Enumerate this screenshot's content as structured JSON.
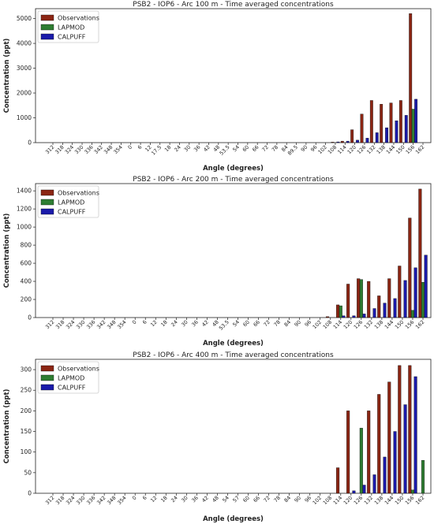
{
  "colors": {
    "observations": "#8b2513",
    "lapmod": "#2e7d32",
    "calpuff": "#1a1aaa"
  },
  "chart_data": [
    {
      "type": "bar",
      "title": "PSB2 - IOP6 - Arc 100 m - Time averaged concentrations",
      "xlabel": "Angle (degrees)",
      "ylabel": "Concentration (ppt)",
      "ylim": [
        0,
        5400
      ],
      "yticks": [
        0,
        1000,
        2000,
        3000,
        4000,
        5000
      ],
      "legend": "top-left",
      "categories": [
        "312",
        "318",
        "324",
        "330",
        "336",
        "342",
        "348",
        "354",
        "0",
        "6",
        "12",
        "17.5",
        "18",
        "24",
        "30",
        "36",
        "42",
        "48",
        "53.5",
        "54",
        "60",
        "66",
        "72",
        "78",
        "84",
        "89.5",
        "90",
        "96",
        "102",
        "108",
        "114",
        "120",
        "126",
        "132",
        "138",
        "144",
        "150",
        "156",
        "162"
      ],
      "series": [
        {
          "name": "Observations",
          "values": [
            0,
            0,
            0,
            0,
            0,
            0,
            0,
            0,
            0,
            0,
            0,
            0,
            0,
            0,
            0,
            0,
            0,
            0,
            0,
            0,
            0,
            0,
            0,
            0,
            0,
            0,
            0,
            0,
            0,
            20,
            60,
            520,
            1150,
            1700,
            1550,
            1600,
            1700,
            5200,
            0
          ]
        },
        {
          "name": "LAPMOD",
          "values": [
            0,
            0,
            0,
            0,
            0,
            0,
            0,
            0,
            0,
            0,
            0,
            0,
            0,
            0,
            0,
            0,
            0,
            0,
            0,
            0,
            0,
            0,
            0,
            0,
            0,
            0,
            0,
            0,
            0,
            0,
            0,
            0,
            0,
            0,
            0,
            0,
            0,
            1350,
            0
          ]
        },
        {
          "name": "CALPUFF",
          "values": [
            0,
            0,
            0,
            0,
            0,
            0,
            0,
            0,
            0,
            0,
            0,
            0,
            0,
            0,
            0,
            0,
            0,
            0,
            0,
            0,
            0,
            0,
            0,
            0,
            0,
            0,
            0,
            0,
            0,
            30,
            60,
            100,
            180,
            400,
            600,
            880,
            1100,
            1750,
            0
          ]
        }
      ]
    },
    {
      "type": "bar",
      "title": "PSB2 - IOP6 - Arc 200 m - Time averaged concentrations",
      "xlabel": "Angle (degrees)",
      "ylabel": "Concentration (ppt)",
      "ylim": [
        0,
        1480
      ],
      "yticks": [
        0,
        200,
        400,
        600,
        800,
        1000,
        1200,
        1400
      ],
      "legend": "top-left",
      "categories": [
        "312",
        "318",
        "324",
        "330",
        "336",
        "342",
        "348",
        "354",
        "0",
        "6",
        "12",
        "18",
        "24",
        "30",
        "36",
        "42",
        "48",
        "53.5",
        "54",
        "60",
        "66",
        "72",
        "78",
        "84",
        "90",
        "96",
        "102",
        "108",
        "114",
        "120",
        "126",
        "132",
        "138",
        "144",
        "150",
        "156",
        "162"
      ],
      "series": [
        {
          "name": "Observations",
          "values": [
            0,
            0,
            0,
            0,
            0,
            0,
            0,
            0,
            0,
            0,
            0,
            0,
            0,
            0,
            0,
            0,
            0,
            0,
            0,
            0,
            0,
            0,
            0,
            0,
            0,
            0,
            0,
            10,
            140,
            370,
            430,
            400,
            240,
            430,
            570,
            1100,
            1420
          ]
        },
        {
          "name": "LAPMOD",
          "values": [
            0,
            0,
            0,
            0,
            0,
            0,
            0,
            0,
            0,
            0,
            0,
            0,
            0,
            0,
            0,
            0,
            0,
            0,
            0,
            0,
            0,
            0,
            0,
            0,
            0,
            0,
            0,
            0,
            130,
            0,
            420,
            0,
            0,
            0,
            0,
            80,
            390
          ]
        },
        {
          "name": "CALPUFF",
          "values": [
            0,
            0,
            0,
            0,
            0,
            0,
            0,
            0,
            0,
            0,
            0,
            0,
            0,
            0,
            0,
            0,
            0,
            0,
            0,
            0,
            0,
            0,
            0,
            0,
            0,
            0,
            0,
            0,
            20,
            20,
            40,
            100,
            160,
            210,
            410,
            550,
            690
          ]
        }
      ]
    },
    {
      "type": "bar",
      "title": "PSB2 - IOP6 - Arc 400 m - Time averaged concentrations",
      "xlabel": "Angle (degrees)",
      "ylabel": "Concentration (ppt)",
      "ylim": [
        0,
        325
      ],
      "yticks": [
        0,
        50,
        100,
        150,
        200,
        250,
        300
      ],
      "legend": "top-left",
      "categories": [
        "312",
        "318",
        "324",
        "330",
        "336",
        "342",
        "348",
        "354",
        "0",
        "6",
        "12",
        "18",
        "24",
        "30",
        "36",
        "42",
        "48",
        "54",
        "57",
        "60",
        "66",
        "72",
        "78",
        "84",
        "90",
        "96",
        "102",
        "108",
        "114",
        "120",
        "126",
        "132",
        "138",
        "144",
        "150",
        "156",
        "162"
      ],
      "series": [
        {
          "name": "Observations",
          "values": [
            0,
            0,
            0,
            0,
            0,
            0,
            0,
            0,
            0,
            0,
            0,
            0,
            0,
            0,
            0,
            0,
            0,
            0,
            0,
            0,
            0,
            0,
            0,
            0,
            0,
            0,
            0,
            0,
            62,
            200,
            0,
            200,
            240,
            270,
            310,
            310,
            0
          ]
        },
        {
          "name": "LAPMOD",
          "values": [
            0,
            0,
            0,
            0,
            0,
            0,
            0,
            0,
            0,
            0,
            0,
            0,
            0,
            0,
            0,
            0,
            0,
            0,
            0,
            0,
            0,
            0,
            0,
            0,
            0,
            0,
            0,
            0,
            0,
            0,
            158,
            0,
            0,
            0,
            0,
            8,
            80
          ]
        },
        {
          "name": "CALPUFF",
          "values": [
            0,
            0,
            0,
            0,
            0,
            0,
            0,
            0,
            0,
            0,
            0,
            0,
            0,
            0,
            0,
            0,
            0,
            0,
            0,
            0,
            0,
            0,
            0,
            0,
            0,
            0,
            0,
            0,
            0,
            6,
            20,
            45,
            88,
            150,
            215,
            283,
            0
          ]
        }
      ]
    }
  ]
}
